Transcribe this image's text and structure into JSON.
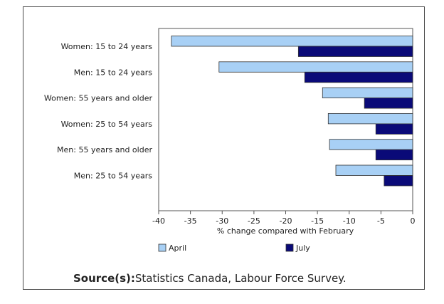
{
  "chart_data": {
    "type": "bar",
    "orientation": "horizontal",
    "categories": [
      "Women: 15 to 24 years",
      "Men: 15 to 24 years",
      "Women: 55 years and older",
      "Women: 25 to 54 years",
      "Men: 55 years and older",
      "Men: 25 to 54 years"
    ],
    "series": [
      {
        "name": "April",
        "color": "#a8d0f5",
        "values": [
          -38.0,
          -30.5,
          -14.2,
          -13.3,
          -13.1,
          -12.1
        ]
      },
      {
        "name": "July",
        "color": "#0a0a78",
        "values": [
          -18.0,
          -17.0,
          -7.6,
          -5.8,
          -5.8,
          -4.5
        ]
      }
    ],
    "xlabel": "% change compared with February",
    "xlim": [
      -40,
      0
    ],
    "xticks": [
      "-40",
      "-35",
      "-30",
      "-25",
      "-20",
      "-15",
      "-10",
      "-5",
      "0"
    ],
    "legend_position": "bottom",
    "grid": false
  },
  "source": {
    "label": "Source(s):",
    "text": "Statistics Canada, Labour Force Survey."
  }
}
